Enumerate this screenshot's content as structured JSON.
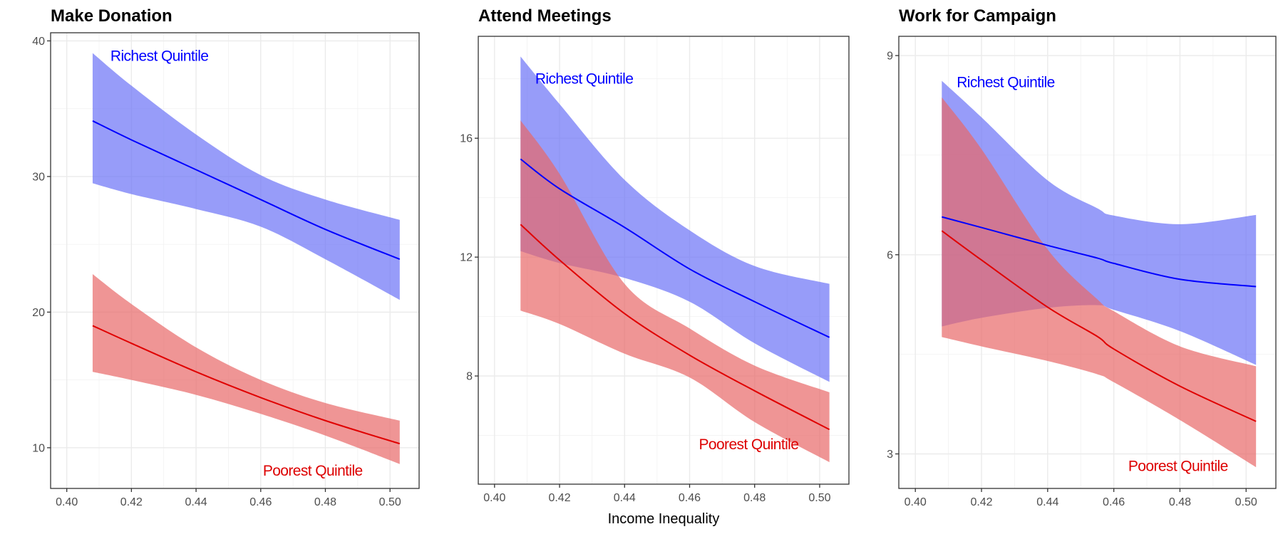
{
  "chart_data": {
    "type": "line",
    "shared_xlabel": "Income Inequality",
    "panels": [
      {
        "title": "Make Donation",
        "xlim": [
          0.395,
          0.509
        ],
        "ylim": [
          7.0,
          40.6
        ],
        "xticks": [
          0.4,
          0.42,
          0.44,
          0.46,
          0.48,
          0.5
        ],
        "xtick_labels": [
          "0.40",
          "0.42",
          "0.44",
          "0.46",
          "0.48",
          "0.50"
        ],
        "yticks": [
          10,
          20,
          30,
          40
        ],
        "ytick_labels": [
          "10",
          "20",
          "30",
          "40"
        ],
        "yminor": [
          15,
          25,
          35
        ],
        "xminor": [
          0.41,
          0.43,
          0.45,
          0.47,
          0.49
        ],
        "grid": true,
        "x": [
          0.408,
          0.42,
          0.44,
          0.46,
          0.48,
          0.503
        ],
        "series": [
          {
            "name": "Richest Quintile",
            "color": "#0000ff",
            "fill": "#6b72f7",
            "values": [
              34.1,
              32.7,
              30.5,
              28.3,
              26.1,
              23.9
            ],
            "lower": [
              29.5,
              28.7,
              27.6,
              26.3,
              23.9,
              20.9
            ],
            "upper": [
              39.1,
              36.7,
              33.1,
              30.1,
              28.3,
              26.8
            ]
          },
          {
            "name": "Poorest Quintile",
            "color": "#e00000",
            "fill": "#e86868",
            "values": [
              19.0,
              17.7,
              15.6,
              13.7,
              12.0,
              10.3
            ],
            "lower": [
              15.6,
              15.0,
              13.9,
              12.5,
              10.9,
              8.8
            ],
            "upper": [
              22.8,
              20.6,
              17.4,
              15.0,
              13.3,
              12.0
            ]
          }
        ],
        "annotations": [
          {
            "text": "Richest Quintile",
            "color": "#0000ff",
            "x": 0.4135,
            "y": 38.9,
            "anchor": "start"
          },
          {
            "text": "Poorest Quintile",
            "color": "#dd0000",
            "x": 0.4915,
            "y": 8.3,
            "anchor": "end"
          }
        ]
      },
      {
        "title": "Attend Meetings",
        "xlim": [
          0.395,
          0.509
        ],
        "ylim": [
          4.36,
          19.43
        ],
        "xticks": [
          0.4,
          0.42,
          0.44,
          0.46,
          0.48,
          0.5
        ],
        "xtick_labels": [
          "0.40",
          "0.42",
          "0.44",
          "0.46",
          "0.48",
          "0.50"
        ],
        "yticks": [
          8,
          12,
          16
        ],
        "ytick_labels": [
          "8",
          "12",
          "16"
        ],
        "yminor": [
          6,
          10,
          14,
          18
        ],
        "xminor": [
          0.41,
          0.43,
          0.45,
          0.47,
          0.49
        ],
        "grid": true,
        "x": [
          0.408,
          0.42,
          0.44,
          0.46,
          0.48,
          0.503
        ],
        "series": [
          {
            "name": "Richest Quintile",
            "color": "#0000ff",
            "fill": "#6b72f7",
            "values": [
              15.3,
              14.3,
              13.0,
              11.6,
              10.5,
              9.3
            ],
            "lower": [
              12.2,
              11.8,
              11.3,
              10.5,
              9.1,
              7.8
            ],
            "upper": [
              18.75,
              17.15,
              14.6,
              12.9,
              11.7,
              11.1
            ]
          },
          {
            "name": "Poorest Quintile",
            "color": "#e00000",
            "fill": "#e86868",
            "values": [
              13.1,
              11.9,
              10.1,
              8.7,
              7.5,
              6.2
            ],
            "lower": [
              10.2,
              9.75,
              8.75,
              7.95,
              6.45,
              5.1
            ],
            "upper": [
              16.6,
              14.8,
              11.1,
              9.6,
              8.35,
              7.45
            ]
          }
        ],
        "annotations": [
          {
            "text": "Richest Quintile",
            "color": "#0000ff",
            "x": 0.4125,
            "y": 18.0,
            "anchor": "start"
          },
          {
            "text": "Poorest Quintile",
            "color": "#dd0000",
            "x": 0.4935,
            "y": 5.7,
            "anchor": "end"
          }
        ]
      },
      {
        "title": "Work for Campaign",
        "xlim": [
          0.395,
          0.509
        ],
        "ylim": [
          2.48,
          9.29
        ],
        "xticks": [
          0.4,
          0.42,
          0.44,
          0.46,
          0.48,
          0.5
        ],
        "xtick_labels": [
          "0.40",
          "0.42",
          "0.44",
          "0.46",
          "0.48",
          "0.50"
        ],
        "yticks": [
          3,
          6,
          9
        ],
        "ytick_labels": [
          "3",
          "6",
          "9"
        ],
        "yminor": [
          4.5,
          7.5
        ],
        "xminor": [
          0.41,
          0.43,
          0.45,
          0.47,
          0.49
        ],
        "grid": true,
        "x": [
          0.408,
          0.42,
          0.44,
          0.455,
          0.46,
          0.48,
          0.503
        ],
        "series": [
          {
            "name": "Richest Quintile",
            "color": "#0000ff",
            "fill": "#6b72f7",
            "values": [
              6.57,
              6.41,
              6.14,
              5.95,
              5.87,
              5.63,
              5.52
            ],
            "lower": [
              4.92,
              5.05,
              5.2,
              5.24,
              5.17,
              4.85,
              4.34
            ],
            "upper": [
              8.62,
              8.07,
              7.12,
              6.7,
              6.59,
              6.46,
              6.6
            ]
          },
          {
            "name": "Poorest Quintile",
            "color": "#e00000",
            "fill": "#e86868",
            "values": [
              6.36,
              5.92,
              5.21,
              4.77,
              4.58,
              4.02,
              3.49
            ],
            "lower": [
              4.76,
              4.62,
              4.4,
              4.2,
              4.08,
              3.51,
              2.8
            ],
            "upper": [
              8.37,
              7.59,
              6.08,
              5.33,
              5.15,
              4.62,
              4.32
            ]
          }
        ],
        "annotations": [
          {
            "text": "Richest Quintile",
            "color": "#0000ff",
            "x": 0.4125,
            "y": 8.6,
            "anchor": "start"
          },
          {
            "text": "Poorest Quintile",
            "color": "#dd0000",
            "x": 0.4945,
            "y": 2.82,
            "anchor": "end"
          }
        ]
      }
    ]
  }
}
